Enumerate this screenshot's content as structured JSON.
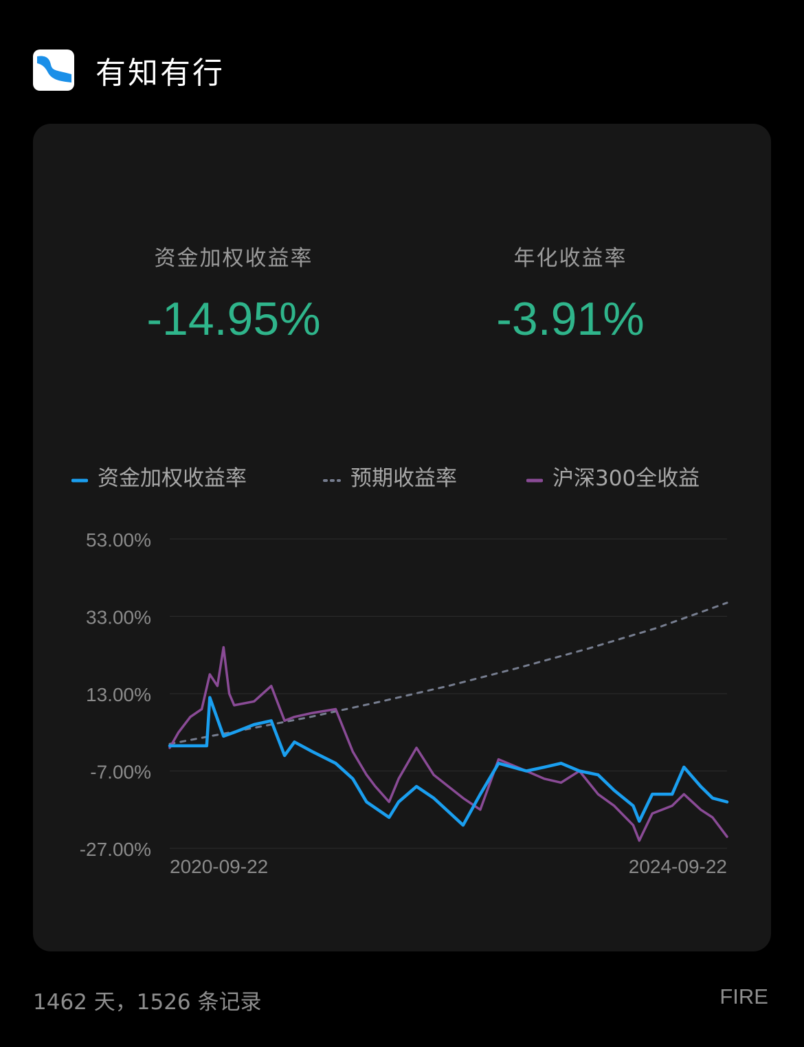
{
  "app": {
    "title": "有知有行",
    "logo_icon": "app-logo-icon"
  },
  "stats": [
    {
      "label": "资金加权收益率",
      "value": "-14.95%"
    },
    {
      "label": "年化收益率",
      "value": "-3.91%"
    }
  ],
  "colors": {
    "positive_negative_value": "#2fb58b",
    "series_money_weighted": "#1a9ff0",
    "series_expected": "#767d8f",
    "series_hs300": "#8a4b96"
  },
  "footer": {
    "summary": "1462 天，1526 条记录",
    "tag": "FIRE"
  },
  "chart_data": {
    "type": "line",
    "x_start": "2020-09-22",
    "x_end": "2024-09-22",
    "x_tick_labels": [
      "2020-09-22",
      "2024-09-22"
    ],
    "y_tick_labels": [
      "53.00%",
      "33.00%",
      "13.00%",
      "-7.00%",
      "-27.00%"
    ],
    "ylim": [
      -27,
      53
    ],
    "grid": true,
    "legend_position": "top",
    "series": [
      {
        "name": "资金加权收益率",
        "style": "solid",
        "x": [
          "2020-09-22",
          "2020-11-22",
          "2020-12-28",
          "2021-01-05",
          "2021-02-10",
          "2021-03-10",
          "2021-05-01",
          "2021-06-15",
          "2021-07-20",
          "2021-08-15",
          "2021-10-01",
          "2021-12-01",
          "2022-01-15",
          "2022-02-20",
          "2022-04-20",
          "2022-05-15",
          "2022-07-01",
          "2022-08-15",
          "2022-10-31",
          "2022-12-15",
          "2023-02-01",
          "2023-04-15",
          "2023-06-01",
          "2023-07-15",
          "2023-09-01",
          "2023-10-20",
          "2023-12-01",
          "2024-01-20",
          "2024-02-05",
          "2024-03-10",
          "2024-05-01",
          "2024-06-01",
          "2024-07-15",
          "2024-08-15",
          "2024-09-22"
        ],
        "values": [
          -0.5,
          -0.5,
          -0.5,
          12,
          2,
          3,
          5,
          6,
          -3,
          0.5,
          -2,
          -5,
          -9,
          -15,
          -19,
          -15,
          -11,
          -14,
          -21,
          -13,
          -5,
          -7,
          -6,
          -5,
          -7,
          -8,
          -12,
          -16,
          -20,
          -13,
          -13,
          -6,
          -11,
          -14,
          -15
        ]
      },
      {
        "name": "预期收益率",
        "style": "dashed",
        "x": [
          "2020-09-22",
          "2021-03-22",
          "2021-09-22",
          "2022-03-22",
          "2022-09-22",
          "2023-03-22",
          "2023-09-22",
          "2024-03-22",
          "2024-09-22"
        ],
        "values": [
          0,
          3.4,
          6.9,
          10.8,
          15,
          19.6,
          24.6,
          30,
          36.5
        ]
      },
      {
        "name": "沪深300全收益",
        "style": "solid",
        "x": [
          "2020-09-22",
          "2020-10-15",
          "2020-11-15",
          "2020-12-15",
          "2021-01-05",
          "2021-01-25",
          "2021-02-10",
          "2021-02-25",
          "2021-03-10",
          "2021-05-01",
          "2021-06-15",
          "2021-07-20",
          "2021-08-15",
          "2021-10-01",
          "2021-12-01",
          "2022-01-15",
          "2022-02-20",
          "2022-03-15",
          "2022-04-20",
          "2022-05-15",
          "2022-07-01",
          "2022-08-15",
          "2022-10-31",
          "2022-12-15",
          "2023-02-01",
          "2023-04-15",
          "2023-06-01",
          "2023-07-15",
          "2023-09-01",
          "2023-10-20",
          "2023-12-01",
          "2024-01-20",
          "2024-02-05",
          "2024-03-10",
          "2024-05-01",
          "2024-06-01",
          "2024-07-15",
          "2024-08-15",
          "2024-09-22"
        ],
        "values": [
          -1,
          3,
          7,
          9,
          18,
          15,
          25,
          13,
          10,
          11,
          15,
          6,
          7,
          8,
          9,
          -2,
          -8,
          -11,
          -15,
          -9,
          -1,
          -8,
          -14,
          -17,
          -4,
          -7,
          -9,
          -10,
          -7,
          -13,
          -16,
          -21,
          -25,
          -18,
          -16,
          -13,
          -17,
          -19,
          -24
        ]
      }
    ]
  }
}
